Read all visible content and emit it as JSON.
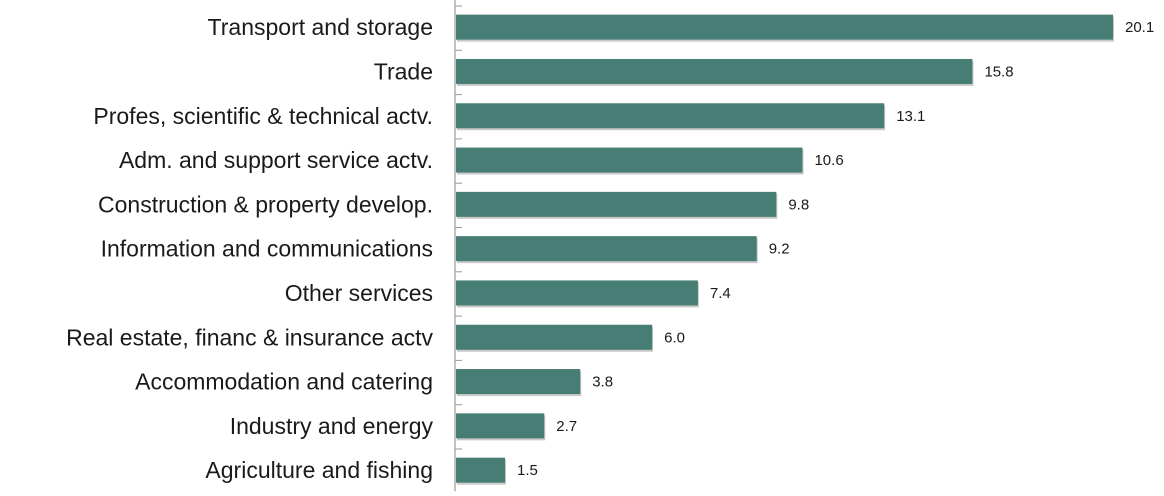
{
  "colors": {
    "bar": "#467d74",
    "text": "#1a1a1a",
    "axis": "#9a9a9a"
  },
  "chart_data": {
    "type": "bar",
    "orientation": "horizontal",
    "title": "",
    "xlabel": "",
    "ylabel": "",
    "categories": [
      "Transport and storage",
      "Trade",
      "Profes, scientific & technical actv.",
      "Adm. and support service actv.",
      "Construction & property develop.",
      "Information and communications",
      "Other services",
      "Real estate, financ & insurance actv",
      "Accommodation and catering",
      "Industry and energy",
      "Agriculture and fishing"
    ],
    "values": [
      20.1,
      15.8,
      13.1,
      10.6,
      9.8,
      9.2,
      7.4,
      6.0,
      3.8,
      2.7,
      1.5
    ],
    "value_labels": [
      "20.1",
      "15.8",
      "13.1",
      "10.6",
      "9.8",
      "9.2",
      "7.4",
      "6.0",
      "3.8",
      "2.7",
      "1.5"
    ],
    "xlim": [
      0,
      20.1
    ],
    "grid": false,
    "legend": "none"
  }
}
